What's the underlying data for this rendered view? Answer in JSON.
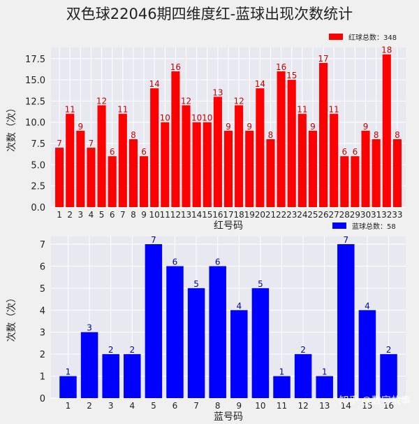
{
  "title": "双色球22046期四维度红-蓝球出现次数统计",
  "watermark": "知乎 @数字故事",
  "chart_data": [
    {
      "type": "bar",
      "name": "red",
      "color": "#ff0000",
      "label_color": "#cc0000",
      "categories": [
        "1",
        "2",
        "3",
        "4",
        "5",
        "6",
        "7",
        "8",
        "9",
        "10",
        "11",
        "12",
        "13",
        "14",
        "15",
        "16",
        "17",
        "18",
        "19",
        "20",
        "21",
        "22",
        "23",
        "24",
        "25",
        "26",
        "27",
        "28",
        "29",
        "30",
        "31",
        "32",
        "33"
      ],
      "values": [
        7,
        11,
        9,
        7,
        12,
        6,
        11,
        8,
        6,
        14,
        10,
        16,
        12,
        10,
        10,
        13,
        9,
        12,
        9,
        14,
        8,
        16,
        15,
        11,
        9,
        17,
        11,
        6,
        6,
        9,
        8,
        18,
        8
      ],
      "ylim": [
        0,
        18.8
      ],
      "yticks": [
        "0.0",
        "2.5",
        "5.0",
        "7.5",
        "10.0",
        "12.5",
        "15.0",
        "17.5"
      ],
      "ytick_values": [
        0,
        2.5,
        5,
        7.5,
        10,
        12.5,
        15,
        17.5
      ],
      "xlabel": "红号码",
      "ylabel": "次数（次）",
      "legend": "红球总数：348",
      "legend_position": "top-right",
      "grid": true
    },
    {
      "type": "bar",
      "name": "blue",
      "color": "#0000ff",
      "label_color": "#0000aa",
      "categories": [
        "1",
        "2",
        "3",
        "4",
        "5",
        "6",
        "7",
        "8",
        "9",
        "10",
        "11",
        "12",
        "13",
        "14",
        "15",
        "16"
      ],
      "values": [
        1,
        3,
        2,
        2,
        7,
        6,
        5,
        6,
        4,
        5,
        1,
        2,
        1,
        7,
        4,
        2
      ],
      "ylim": [
        0,
        7.35
      ],
      "yticks": [
        "0",
        "1",
        "2",
        "3",
        "4",
        "5",
        "6",
        "7"
      ],
      "ytick_values": [
        0,
        1,
        2,
        3,
        4,
        5,
        6,
        7
      ],
      "xlabel": "蓝号码",
      "ylabel": "次数（次）",
      "legend": "蓝球总数：58",
      "legend_position": "top-right",
      "grid": true
    }
  ]
}
